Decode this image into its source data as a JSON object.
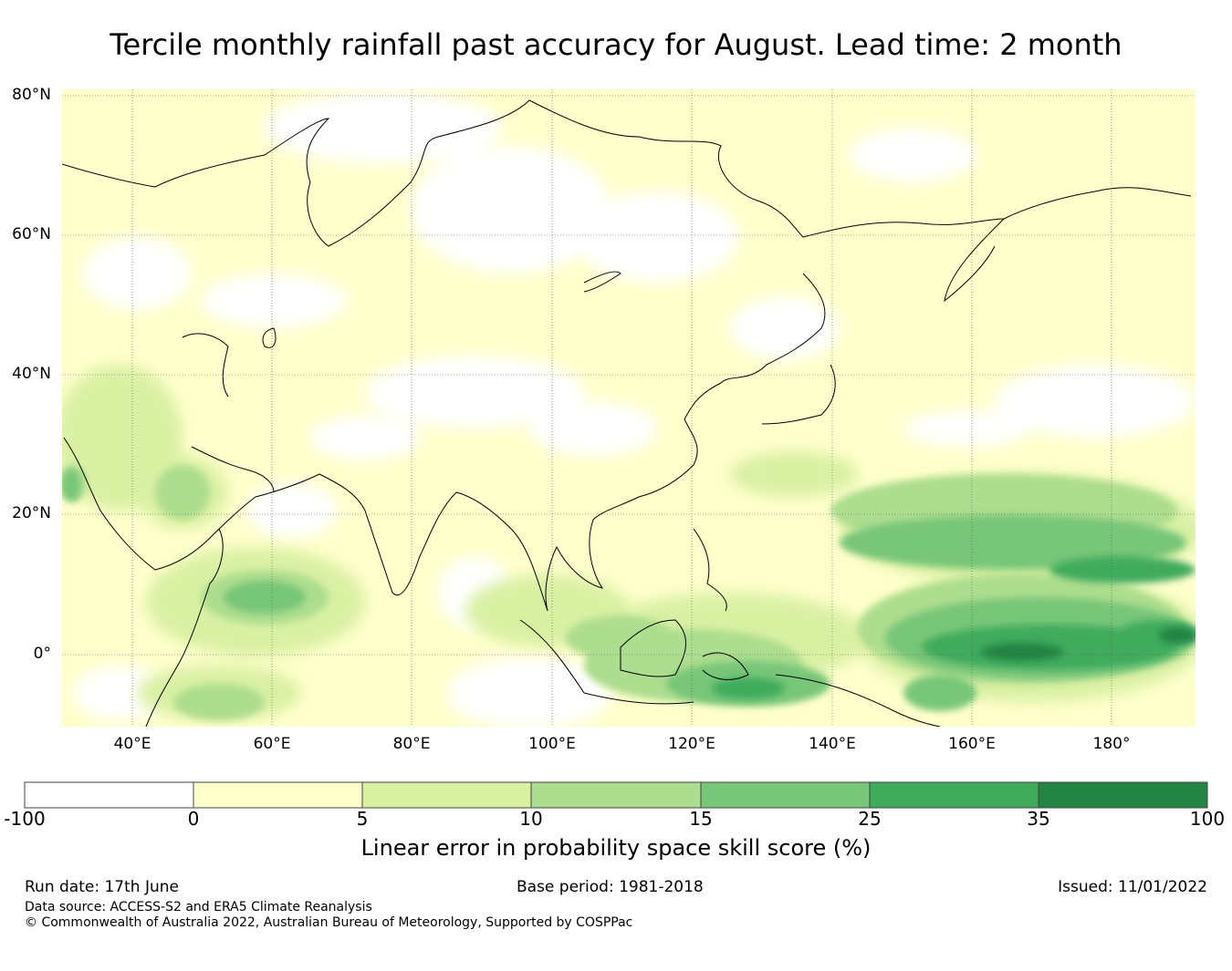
{
  "title": "Tercile monthly rainfall past accuracy for August. Lead time: 2 month",
  "map": {
    "lat_labels": [
      "80°N",
      "60°N",
      "40°N",
      "20°N",
      "0°"
    ],
    "lon_labels": [
      "40°E",
      "60°E",
      "80°E",
      "100°E",
      "120°E",
      "140°E",
      "160°E",
      "180°"
    ],
    "lat_range": [
      -10,
      80
    ],
    "lon_range": [
      30,
      192
    ],
    "gridlines": true
  },
  "colorbar": {
    "label": "Linear error in probability space skill score (%)",
    "ticks": [
      "-100",
      "0",
      "5",
      "10",
      "15",
      "25",
      "35",
      "100"
    ],
    "colors": [
      "#ffffff",
      "#ffffcc",
      "#d9f0a3",
      "#addd8e",
      "#78c679",
      "#41ab5d",
      "#238443"
    ]
  },
  "footer": {
    "run_date": "Run date: 17th June",
    "base_period": "Base period: 1981-2018",
    "issued": "Issued: 11/01/2022",
    "data_source": "Data source: ACCESS-S2 and ERA5 Climate Reanalysis",
    "copyright": "© Commonwealth of Australia 2022, Australian Bureau of Meteorology, Supported by COSPPac"
  }
}
